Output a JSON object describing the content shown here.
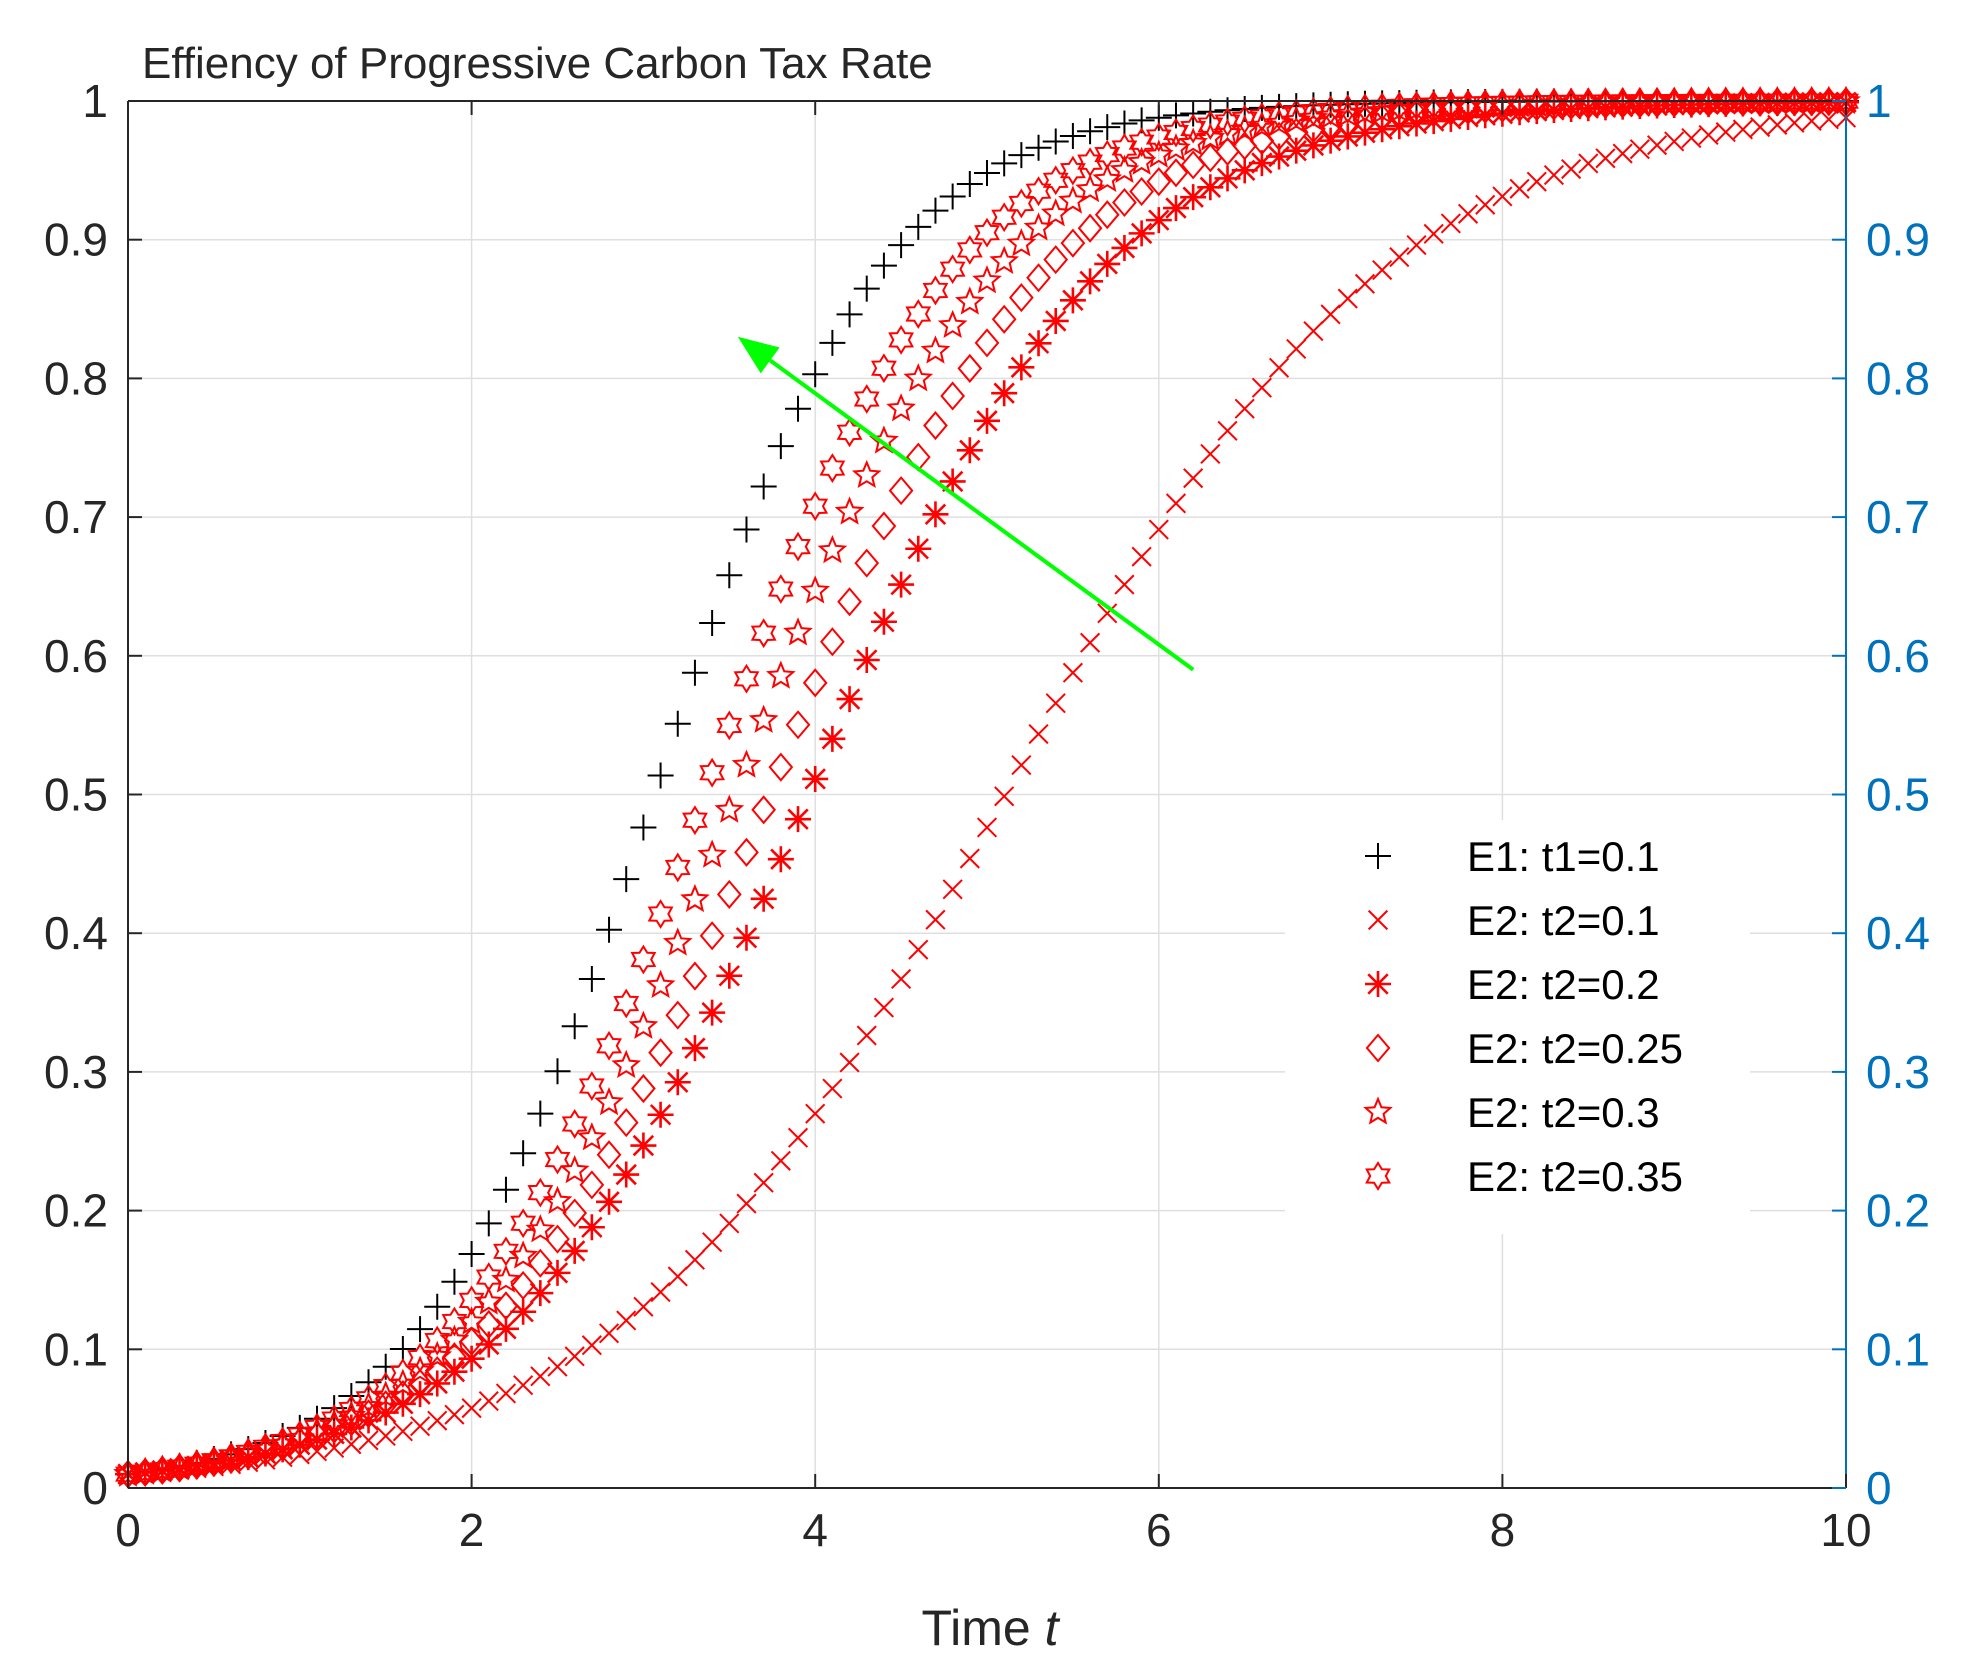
{
  "chart_data": {
    "type": "scatter",
    "title": "Effiency of Progressive Carbon Tax Rate",
    "xlabel": "Time",
    "xlabel_italic": "t",
    "ylabel": "",
    "xlim": [
      0,
      10
    ],
    "ylim": [
      0,
      1
    ],
    "y2lim": [
      0,
      1
    ],
    "grid": true,
    "xticks": [
      "0",
      "2",
      "4",
      "6",
      "8",
      "10"
    ],
    "yticks": [
      "0",
      "0.1",
      "0.2",
      "0.3",
      "0.4",
      "0.5",
      "0.6",
      "0.7",
      "0.8",
      "0.9",
      "1"
    ],
    "y2ticks": [
      "0",
      "0.1",
      "0.2",
      "0.3",
      "0.4",
      "0.5",
      "0.6",
      "0.7",
      "0.8",
      "0.9",
      "1"
    ],
    "legend_position": "center-right",
    "x_sampling": {
      "start": 0,
      "end": 10,
      "step": 0.1
    },
    "series": [
      {
        "name": "E1: t1=0.1",
        "marker": "plus",
        "color": "#000000",
        "model": "logistic",
        "y0": 0.01,
        "rate": 1.5
      },
      {
        "name": "E2: t2=0.1",
        "marker": "x",
        "color": "#FF0000",
        "model": "logistic",
        "y0": 0.01,
        "rate": 0.9
      },
      {
        "name": "E2: t2=0.2",
        "marker": "asterisk",
        "color": "#FF0000",
        "model": "logistic",
        "y0": 0.01,
        "rate": 1.16
      },
      {
        "name": "E2: t2=0.25",
        "marker": "diamond",
        "color": "#FF0000",
        "model": "logistic",
        "y0": 0.01,
        "rate": 1.23
      },
      {
        "name": "E2: t2=0.3",
        "marker": "pentagram",
        "color": "#FF0000",
        "model": "logistic",
        "y0": 0.01,
        "rate": 1.3
      },
      {
        "name": "E2: t2=0.35",
        "marker": "hexagram",
        "color": "#FF0000",
        "model": "logistic",
        "y0": 0.01,
        "rate": 1.37
      }
    ],
    "annotations": [
      {
        "type": "arrow",
        "color": "#00FF00",
        "from": [
          6.2,
          0.59
        ],
        "to": [
          3.55,
          0.83
        ]
      }
    ],
    "colors": {
      "axis": "#262626",
      "right_axis": "#0072BD",
      "grid": "#DFDFDF"
    }
  }
}
